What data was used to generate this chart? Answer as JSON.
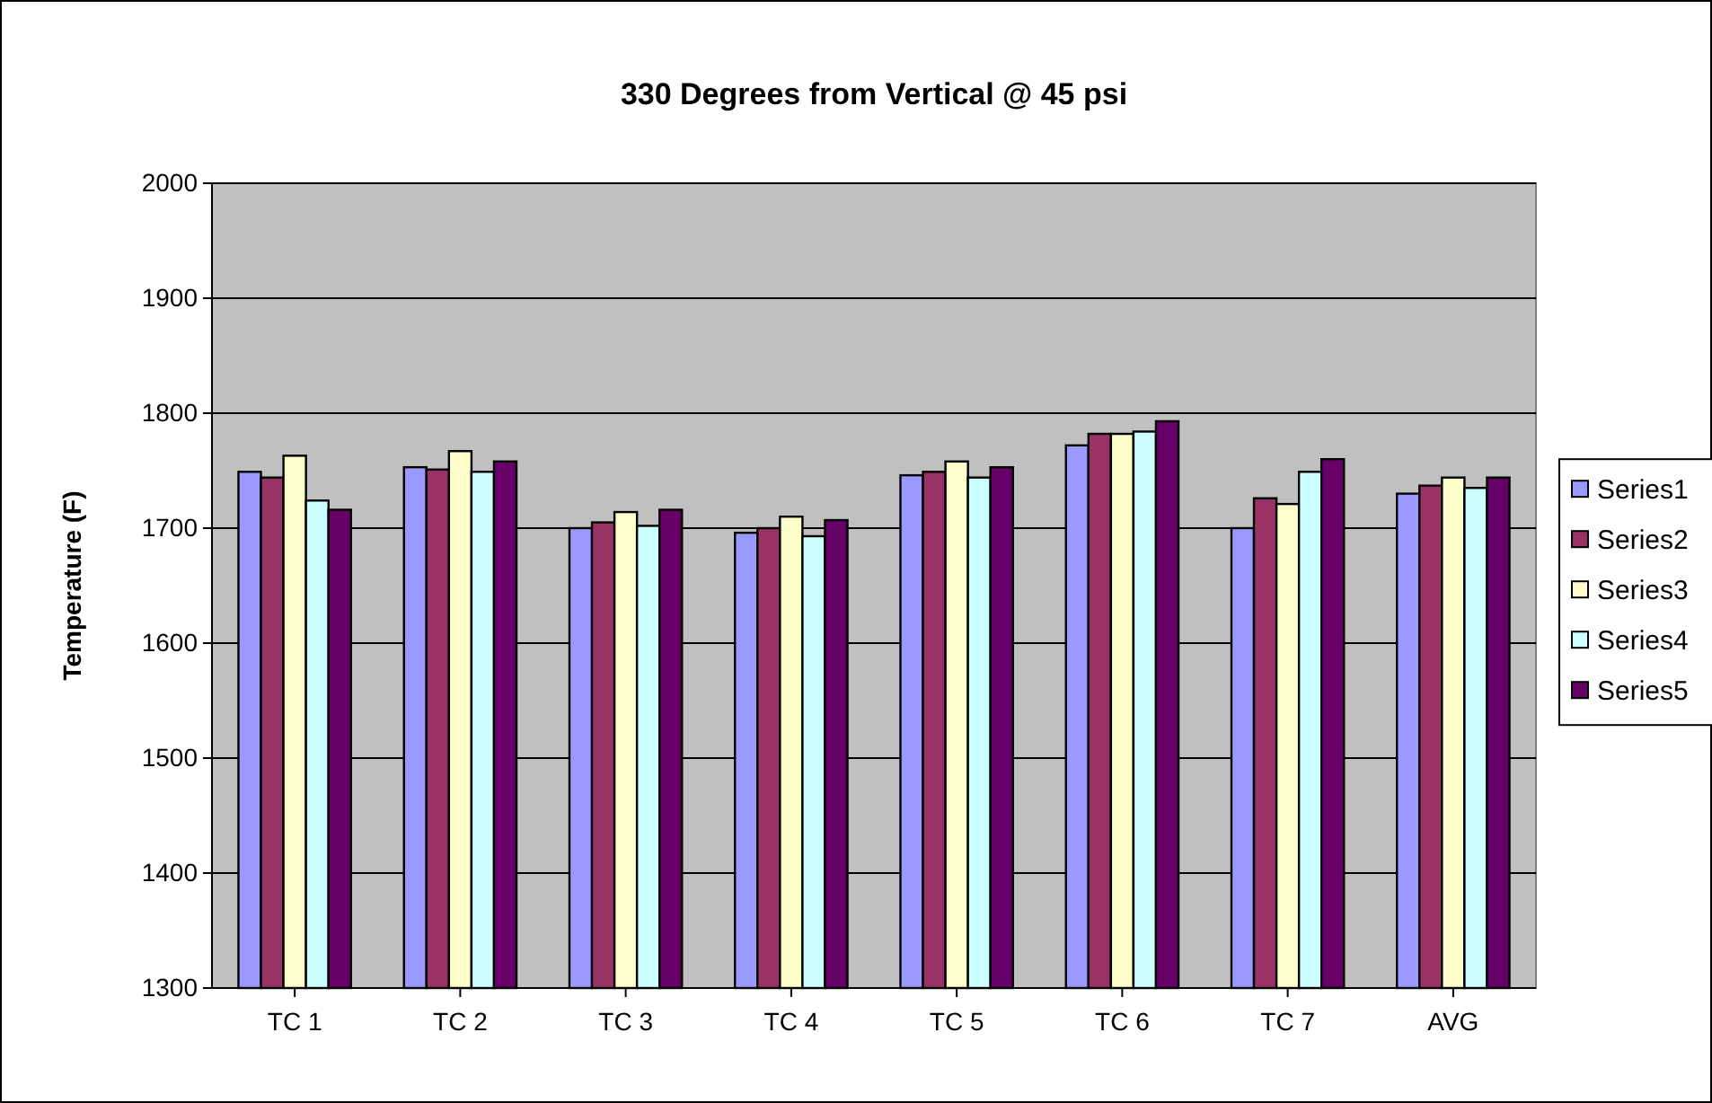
{
  "chart_data": {
    "type": "bar",
    "title": "330 Degrees from Vertical @ 45 psi",
    "ylabel": "Temperature (F)",
    "categories": [
      "TC 1",
      "TC 2",
      "TC 3",
      "TC 4",
      "TC 5",
      "TC 6",
      "TC 7",
      "AVG"
    ],
    "series": [
      {
        "name": "Series1",
        "color": "#9999ff",
        "values": [
          1749,
          1753,
          1700,
          1696,
          1746,
          1772,
          1700,
          1730
        ]
      },
      {
        "name": "Series2",
        "color": "#993366",
        "values": [
          1744,
          1751,
          1705,
          1700,
          1749,
          1782,
          1726,
          1737
        ]
      },
      {
        "name": "Series3",
        "color": "#ffffcc",
        "values": [
          1763,
          1767,
          1714,
          1710,
          1758,
          1782,
          1721,
          1744
        ]
      },
      {
        "name": "Series4",
        "color": "#ccffff",
        "values": [
          1724,
          1749,
          1702,
          1693,
          1744,
          1784,
          1749,
          1735
        ]
      },
      {
        "name": "Series5",
        "color": "#660066",
        "values": [
          1716,
          1758,
          1716,
          1707,
          1753,
          1793,
          1760,
          1744
        ]
      }
    ],
    "ylim": [
      1300,
      2000
    ],
    "yticks": [
      1300,
      1400,
      1500,
      1600,
      1700,
      1800,
      1900,
      2000
    ],
    "grid": "y",
    "legend": "right"
  }
}
